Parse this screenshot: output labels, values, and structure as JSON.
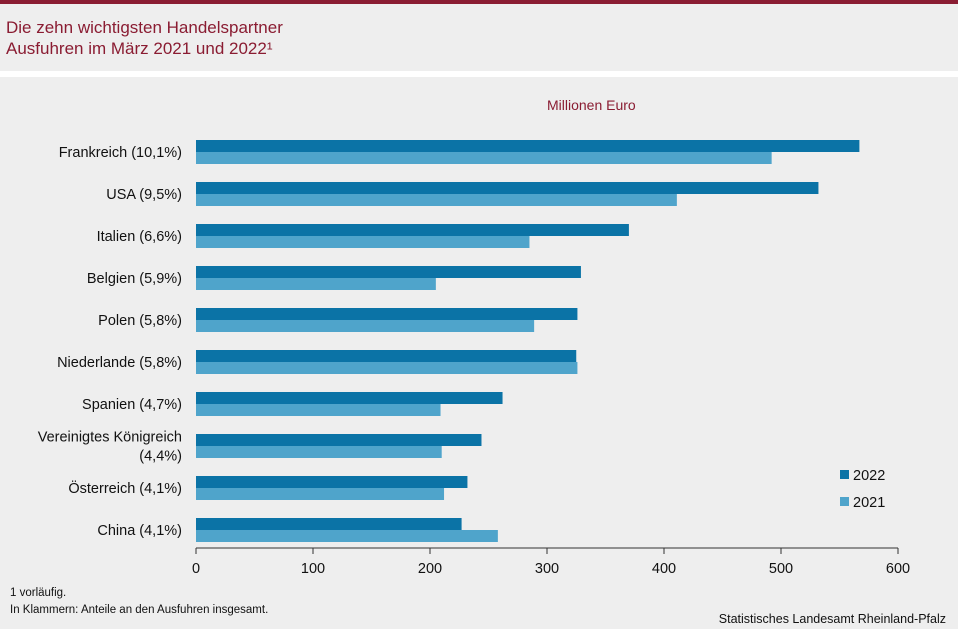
{
  "title": {
    "line1": "Die zehn wichtigsten Handelspartner",
    "line2": "Ausfuhren im März 2021 und 2022¹"
  },
  "unit_label": "Millionen Euro",
  "footnotes": {
    "line1": "1 vorläufig.",
    "line2": "In Klammern: Anteile an den Ausfuhren insgesamt."
  },
  "source": "Statistisches Landesamt Rheinland-Pfalz",
  "colors": {
    "accent": "#8a1c32",
    "series_2022": "#0b73a6",
    "series_2021": "#4fa4cb"
  },
  "chart_data": {
    "type": "bar",
    "orientation": "horizontal",
    "categories": [
      [
        "Frankreich (10,1%)"
      ],
      [
        "USA (9,5%)"
      ],
      [
        "Italien (6,6%)"
      ],
      [
        "Belgien (5,9%)"
      ],
      [
        "Polen (5,8%)"
      ],
      [
        "Niederlande (5,8%)"
      ],
      [
        "Spanien (4,7%)"
      ],
      [
        "Vereinigtes Königreich",
        "(4,4%)"
      ],
      [
        "Österreich (4,1%)"
      ],
      [
        "China (4,1%)"
      ]
    ],
    "series": [
      {
        "name": "2022",
        "color": "#0b73a6",
        "values": [
          567,
          532,
          370,
          329,
          326,
          325,
          262,
          244,
          232,
          227
        ]
      },
      {
        "name": "2021",
        "color": "#4fa4cb",
        "values": [
          492,
          411,
          285,
          205,
          289,
          326,
          209,
          210,
          212,
          258
        ]
      }
    ],
    "xlim": [
      0,
      600
    ],
    "xticks": [
      0,
      100,
      200,
      300,
      400,
      500,
      600
    ],
    "legend_position": "bottom-right",
    "grid": false
  }
}
